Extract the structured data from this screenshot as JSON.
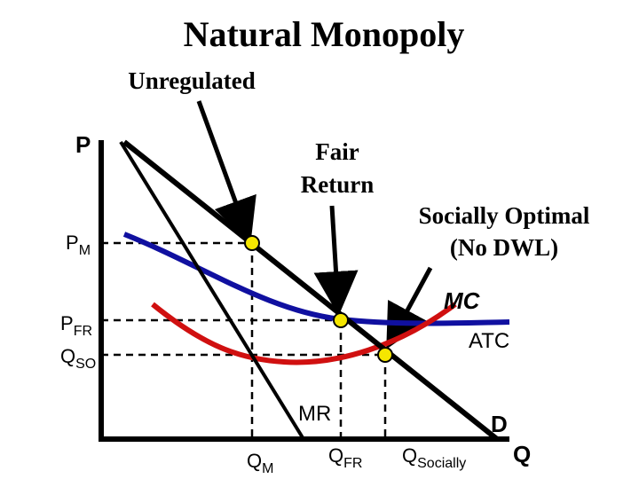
{
  "title": "Natural Monopoly",
  "annotations": {
    "unregulated": "Unregulated",
    "fair_return_1": "Fair",
    "fair_return_2": "Return",
    "socially_optimal_1": "Socially Optimal",
    "socially_optimal_2": "(No DWL)"
  },
  "axis": {
    "y_label": "P",
    "x_label": "Q"
  },
  "price_labels": {
    "pm_main": "P",
    "pm_sub": "M",
    "pfr_main": "P",
    "pfr_sub": "FR",
    "qso_main": "Q",
    "qso_sub": "SO"
  },
  "quantity_labels": {
    "qm_main": "Q",
    "qm_sub": "M",
    "qfr_main": "Q",
    "qfr_sub": "FR",
    "qsoc_main": "Q",
    "qsoc_sub": "Socially"
  },
  "curve_labels": {
    "mc": "MC",
    "atc": "ATC",
    "mr": "MR",
    "d": "D"
  },
  "colors": {
    "atc": "#1010a0",
    "mc": "#d01010",
    "point_fill": "#f5e600",
    "axis": "#000000"
  }
}
